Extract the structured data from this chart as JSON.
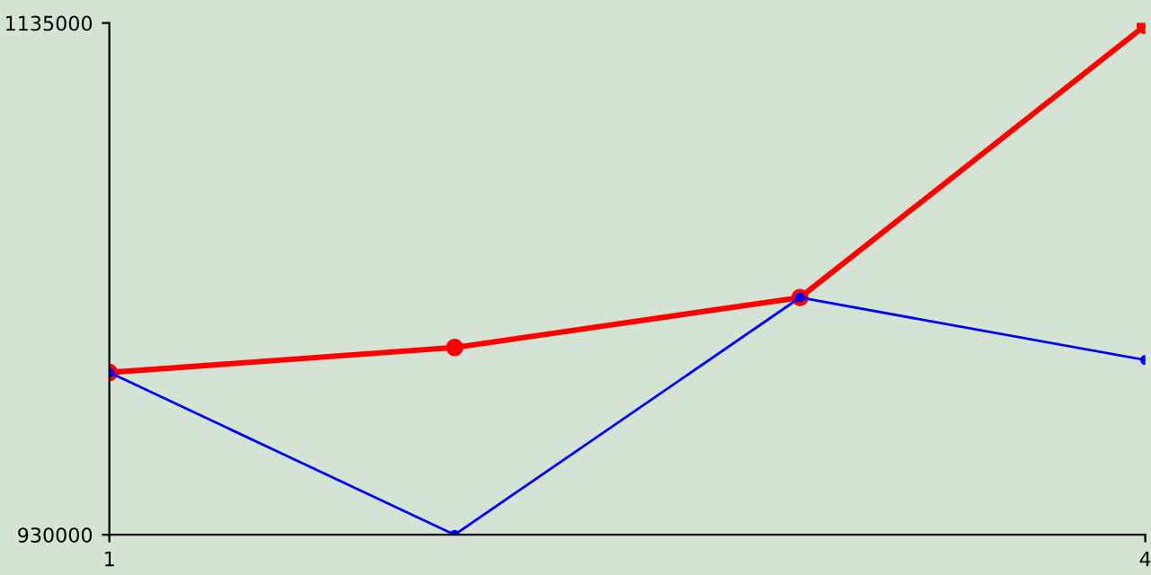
{
  "chart_data": {
    "type": "line",
    "x": [
      1,
      2,
      3,
      4
    ],
    "xlim": [
      1,
      4
    ],
    "xticks": [
      1,
      4
    ],
    "ylim": [
      930000,
      1135000
    ],
    "yticks": [
      930000,
      1135000
    ],
    "grid": false,
    "legend": false,
    "marker": "circle",
    "line_style": "solid",
    "series": [
      {
        "color": "#ff0000",
        "values": [
          995000,
          1005000,
          1025000,
          1134000
        ]
      },
      {
        "color": "#0000ff",
        "values": [
          995000,
          930000,
          1025000,
          1000000
        ]
      }
    ]
  }
}
